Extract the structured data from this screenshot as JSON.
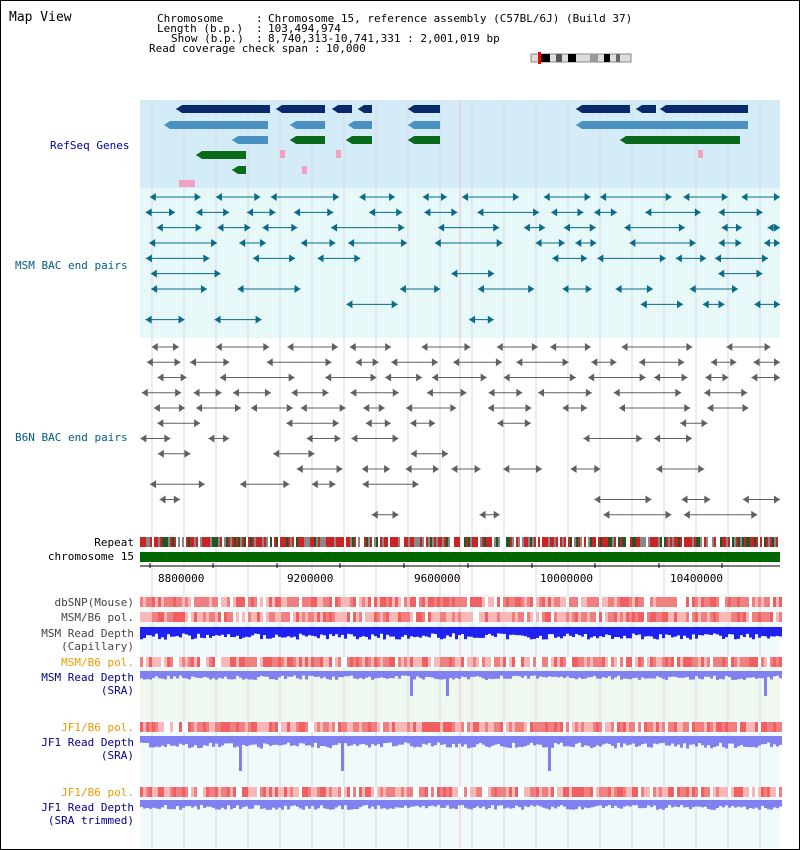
{
  "app": {
    "title": "Map View"
  },
  "info": {
    "chromosome_label": "Chromosome",
    "chromosome_value": "Chromosome 15, reference assembly (C57BL/6J) (Build 37)",
    "length_label": "Length (b.p.)",
    "length_value": "103,494,974",
    "show_label": "Show (b.p.)",
    "show_value": "8,740,313-10,741,331 : 2,001,019 bp",
    "coverage_label": "Read coverage check span",
    "coverage_value": "10,000"
  },
  "tracks": {
    "refseq": "RefSeq Genes",
    "msm_bac": "MSM BAC end pairs",
    "b6n_bac": "B6N BAC end pairs",
    "repeat": "Repeat",
    "chromosome": "chromosome 15",
    "dbsnp": "dbSNP(Mouse)",
    "msm_b6_pol_1": "MSM/B6 pol.",
    "msm_read_depth_cap_1": "MSM Read Depth",
    "msm_read_depth_cap_2": "(Capillary)",
    "msm_b6_pol_2": "MSM/B6 pol.",
    "msm_read_depth_sra_1": "MSM Read Depth",
    "msm_read_depth_sra_2": "(SRA)",
    "jf1_b6_pol_1": "JF1/B6 pol.",
    "jf1_read_depth_sra_1": "JF1 Read Depth",
    "jf1_read_depth_sra_2": "(SRA)",
    "jf1_b6_pol_2": "JF1/B6 pol.",
    "jf1_read_depth_trim_1": "JF1 Read Depth",
    "jf1_read_depth_trim_2": "(SRA trimmed)"
  },
  "axis": {
    "ticks": [
      "8800000",
      "9200000",
      "9600000",
      "10000000",
      "10400000"
    ]
  },
  "colors": {
    "refseq_bg": "#d4ecf8",
    "msm_bac_bg": "#e6f8f8",
    "gene_dark": "#0a2a6e",
    "gene_mid": "#4a90c0",
    "gene_green": "#0a6a1a",
    "pink": "#f4a0c0",
    "bac_msm": "#0a6a8a",
    "bac_b6n": "#606060",
    "chromosome": "#006600",
    "depth_capillary": "#2020f0",
    "depth_sra": "#8080f0",
    "pol": "#f06060"
  }
}
